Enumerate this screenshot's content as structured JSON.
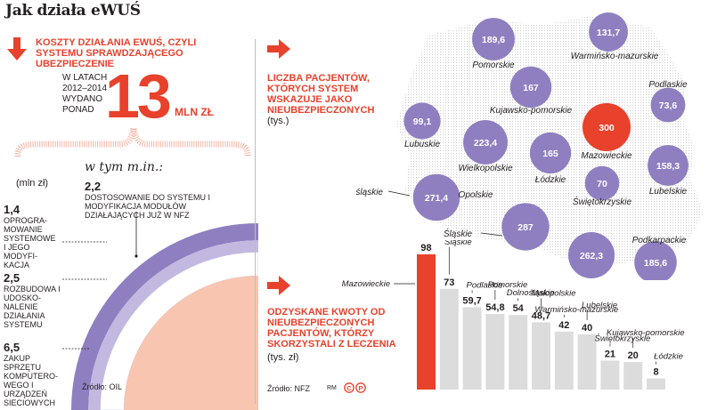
{
  "title": "Jak działa eWUŚ",
  "left_section": {
    "heading": "KOSZTY DZIAŁANIA eWUŚ, CZYLI SYSTEMU SPRAWDZAJĄCEGO UBEZPIECZENIE",
    "intro": "W LATACH 2012–2014 WYDANO PONAD",
    "big_number": "13",
    "big_unit": "MLN ZŁ",
    "subhead": "w tym m.in.:",
    "unit_note": "(mln zł)",
    "source": "Źródło: OIL"
  },
  "map_section": {
    "heading": "LICZBA PACJENTÓW, KTÓRYCH SYSTEM WSKAZUJE JAKO NIEUBEZPIECZONYCH",
    "unit": "(tys.)"
  },
  "bar_section": {
    "heading": "ODZYSKANE KWOTY OD NIEUBEZPIECZONYCH PACJENTÓW, KTÓRZY SKORZYSTALI Z LECZENIA",
    "unit": "(tys. zł)",
    "source": "Źródło: NFZ",
    "credit": "RM"
  },
  "colors": {
    "accent_red": "#e8412c",
    "purple": "#8f7fc0",
    "light_purple": "#c3b9e0",
    "bar_gray": "#dcdcdc",
    "salmon": "#f7c5b0"
  },
  "chart_data": [
    {
      "type": "pie",
      "title": "KOSZTY DZIAŁANIA eWUŚ",
      "unit": "mln zł",
      "series": [
        {
          "name": "DOSTOSOWANIE DO SYSTEMU I MODYFIKACJA MODUŁÓW DZIAŁAJĄCYCH JUŻ W NFZ",
          "value": 2.2,
          "label": "2,2"
        },
        {
          "name": "OPROGRA-MOWANIE SYSTEMOWE I JEGO MODYFI-KACJA",
          "value": 1.4,
          "label": "1,4"
        },
        {
          "name": "ROZBUDOWA I UDOSKO-NALENIE DZIAŁANIA SYSTEMU",
          "value": 2.5,
          "label": "2,5"
        },
        {
          "name": "ZAKUP SPRZĘTU KOMPUTERO-WEGO I URZĄDZEŃ SIECIOWYCH",
          "value": 6.5,
          "label": "6,5"
        }
      ]
    },
    {
      "type": "scatter",
      "title": "LICZBA PACJENTÓW, KTÓRYCH SYSTEM WSKAZUJE JAKO NIEUBEZPIECZONYCH",
      "unit": "tys.",
      "points": [
        {
          "region": "Pomorskie",
          "value": 189.6,
          "label": "189,6"
        },
        {
          "region": "Warmińsko-mazurskie",
          "value": 131.7,
          "label": "131,7"
        },
        {
          "region": "Kujawsko-pomorskie",
          "value": 167,
          "label": "167"
        },
        {
          "region": "Podlaskie",
          "value": 73.6,
          "label": "73,6"
        },
        {
          "region": "Lubuskie",
          "value": 99.1,
          "label": "99,1"
        },
        {
          "region": "Wielkopolskie",
          "value": 223.4,
          "label": "223,4"
        },
        {
          "region": "Łódzkie",
          "value": 165,
          "label": "165"
        },
        {
          "region": "Mazowieckie",
          "value": 300,
          "label": "300"
        },
        {
          "region": "Lubelskie",
          "value": 158.3,
          "label": "158,3"
        },
        {
          "region": "Dolnośląskie",
          "value": 271.4,
          "label": "271,4"
        },
        {
          "region": "Opolskie",
          "value": 287,
          "label": "287"
        },
        {
          "region": "Świętokrzyskie",
          "value": 70,
          "label": "70"
        },
        {
          "region": "Śląskie",
          "value": 262.3,
          "label": "262,3"
        },
        {
          "region": "Podkarpackie",
          "value": 185.6,
          "label": "185,6"
        }
      ]
    },
    {
      "type": "bar",
      "title": "ODZYSKANE KWOTY OD NIEUBEZPIECZONYCH PACJENTÓW",
      "unit": "tys. zł",
      "categories": [
        "Mazowieckie",
        "Śląskie",
        "Podlaskie",
        "Pomorskie",
        "Dolnośląskie",
        "Małopolskie",
        "Warmińsko-mazurskie",
        "Lubelskie",
        "Świętokrzyskie",
        "Kujawsko-pomorskie",
        "Łódzkie"
      ],
      "values": [
        98,
        73,
        59.7,
        54.8,
        54,
        48.7,
        42,
        40,
        21,
        20,
        8
      ],
      "value_labels": [
        "98",
        "73",
        "59,7",
        "54,8",
        "54",
        "48,7",
        "42",
        "40",
        "21",
        "20",
        "8"
      ]
    }
  ]
}
